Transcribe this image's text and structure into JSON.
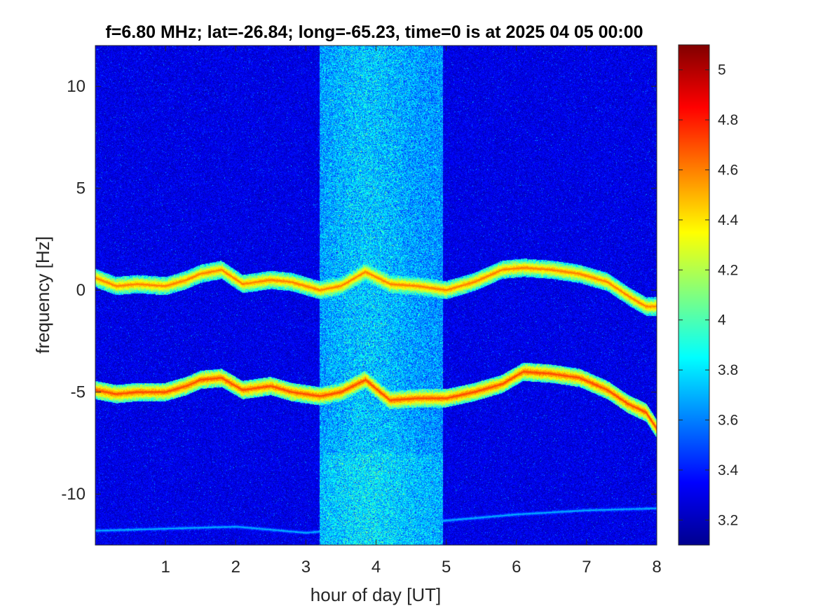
{
  "chart_data": {
    "type": "heatmap",
    "title": "f=6.80 MHz;  lat=-26.84; long=-65.23, time=0 is at 2025 04 05 00:00",
    "xlabel": "hour of day [UT]",
    "ylabel": "frequency [Hz]",
    "xlim": [
      0,
      8
    ],
    "ylim": [
      -12.5,
      12.0
    ],
    "xticks": [
      1,
      2,
      3,
      4,
      5,
      6,
      7,
      8
    ],
    "xtick_labels": [
      "1",
      "2",
      "3",
      "4",
      "5",
      "6",
      "7",
      "8"
    ],
    "yticks": [
      10,
      5,
      0,
      -5,
      -10
    ],
    "ytick_labels": [
      "10",
      "5",
      "0",
      "-5",
      "-10"
    ],
    "colormap": "jet",
    "clim": [
      3.1,
      5.1
    ],
    "colorbar_ticks": [
      3.2,
      3.4,
      3.6,
      3.8,
      4.0,
      4.2,
      4.4,
      4.6,
      4.8,
      5.0
    ],
    "colorbar_tick_labels": [
      "3.2",
      "3.4",
      "3.6",
      "3.8",
      "4",
      "4.2",
      "4.4",
      "4.6",
      "4.8",
      "5"
    ],
    "background_level": 3.3,
    "noise_band": {
      "x_range": [
        3.2,
        4.95
      ],
      "level": 3.75
    },
    "traces": [
      {
        "x": [
          0.0,
          0.3,
          0.6,
          1.0,
          1.3,
          1.5,
          1.8,
          2.1,
          2.5,
          2.8,
          3.2,
          3.5,
          3.85,
          4.2,
          4.6,
          5.0,
          5.4,
          5.8,
          6.1,
          6.5,
          6.9,
          7.3,
          7.6,
          7.85
        ],
        "y": [
          0.6,
          0.2,
          0.3,
          0.2,
          0.5,
          0.8,
          1.0,
          0.3,
          0.5,
          0.4,
          0.0,
          0.2,
          0.9,
          0.3,
          0.2,
          0.0,
          0.4,
          1.0,
          1.1,
          1.0,
          0.8,
          0.4,
          -0.3,
          -0.8
        ],
        "level": 4.6
      },
      {
        "x": [
          0.0,
          0.3,
          0.6,
          1.0,
          1.3,
          1.5,
          1.8,
          2.1,
          2.5,
          2.8,
          3.2,
          3.5,
          3.85,
          4.2,
          4.6,
          5.0,
          5.4,
          5.8,
          6.1,
          6.5,
          6.9,
          7.3,
          7.6,
          7.85,
          8.0
        ],
        "y": [
          -4.9,
          -5.1,
          -5.0,
          -5.0,
          -4.7,
          -4.4,
          -4.3,
          -4.9,
          -4.7,
          -5.0,
          -5.2,
          -5.0,
          -4.4,
          -5.4,
          -5.3,
          -5.3,
          -5.0,
          -4.6,
          -4.0,
          -4.1,
          -4.3,
          -4.9,
          -5.6,
          -6.0,
          -6.8
        ],
        "level": 4.7
      },
      {
        "x": [
          0.0,
          1.0,
          2.0,
          3.0,
          5.0,
          6.0,
          7.0,
          8.0
        ],
        "y": [
          -11.8,
          -11.7,
          -11.6,
          -11.9,
          -11.3,
          -11.0,
          -10.8,
          -10.7
        ],
        "level": 3.7
      }
    ]
  }
}
